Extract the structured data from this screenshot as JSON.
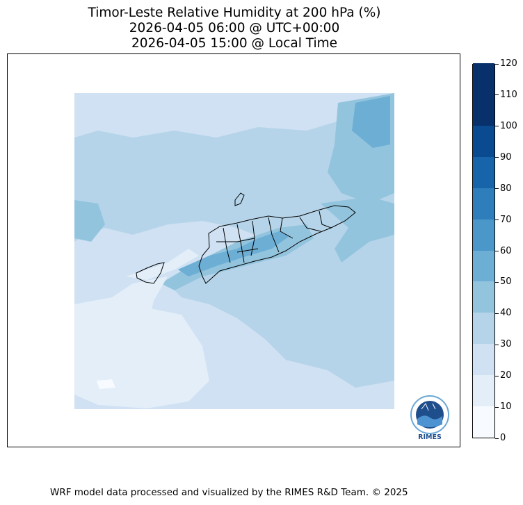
{
  "title": {
    "line1": "Timor-Leste Relative Humidity at 200 hPa (%)",
    "line2": "2026-04-05 06:00 @ UTC+00:00",
    "line3": "2026-04-05 15:00 @ Local Time"
  },
  "colorbar": {
    "ticks": [
      "0",
      "10",
      "20",
      "30",
      "40",
      "50",
      "60",
      "70",
      "80",
      "90",
      "100",
      "110",
      "120"
    ],
    "colors": [
      "#f7fbff",
      "#e3eef9",
      "#cfe1f2",
      "#b5d4e9",
      "#93c4de",
      "#6daed5",
      "#4b97c9",
      "#2f7ebc",
      "#1864aa",
      "#0a4a90",
      "#08306b",
      "#08306b"
    ]
  },
  "logo": {
    "text": "RIMES"
  },
  "footer": "WRF model data processed and visualized by the RIMES R&D Team. © 2025"
}
